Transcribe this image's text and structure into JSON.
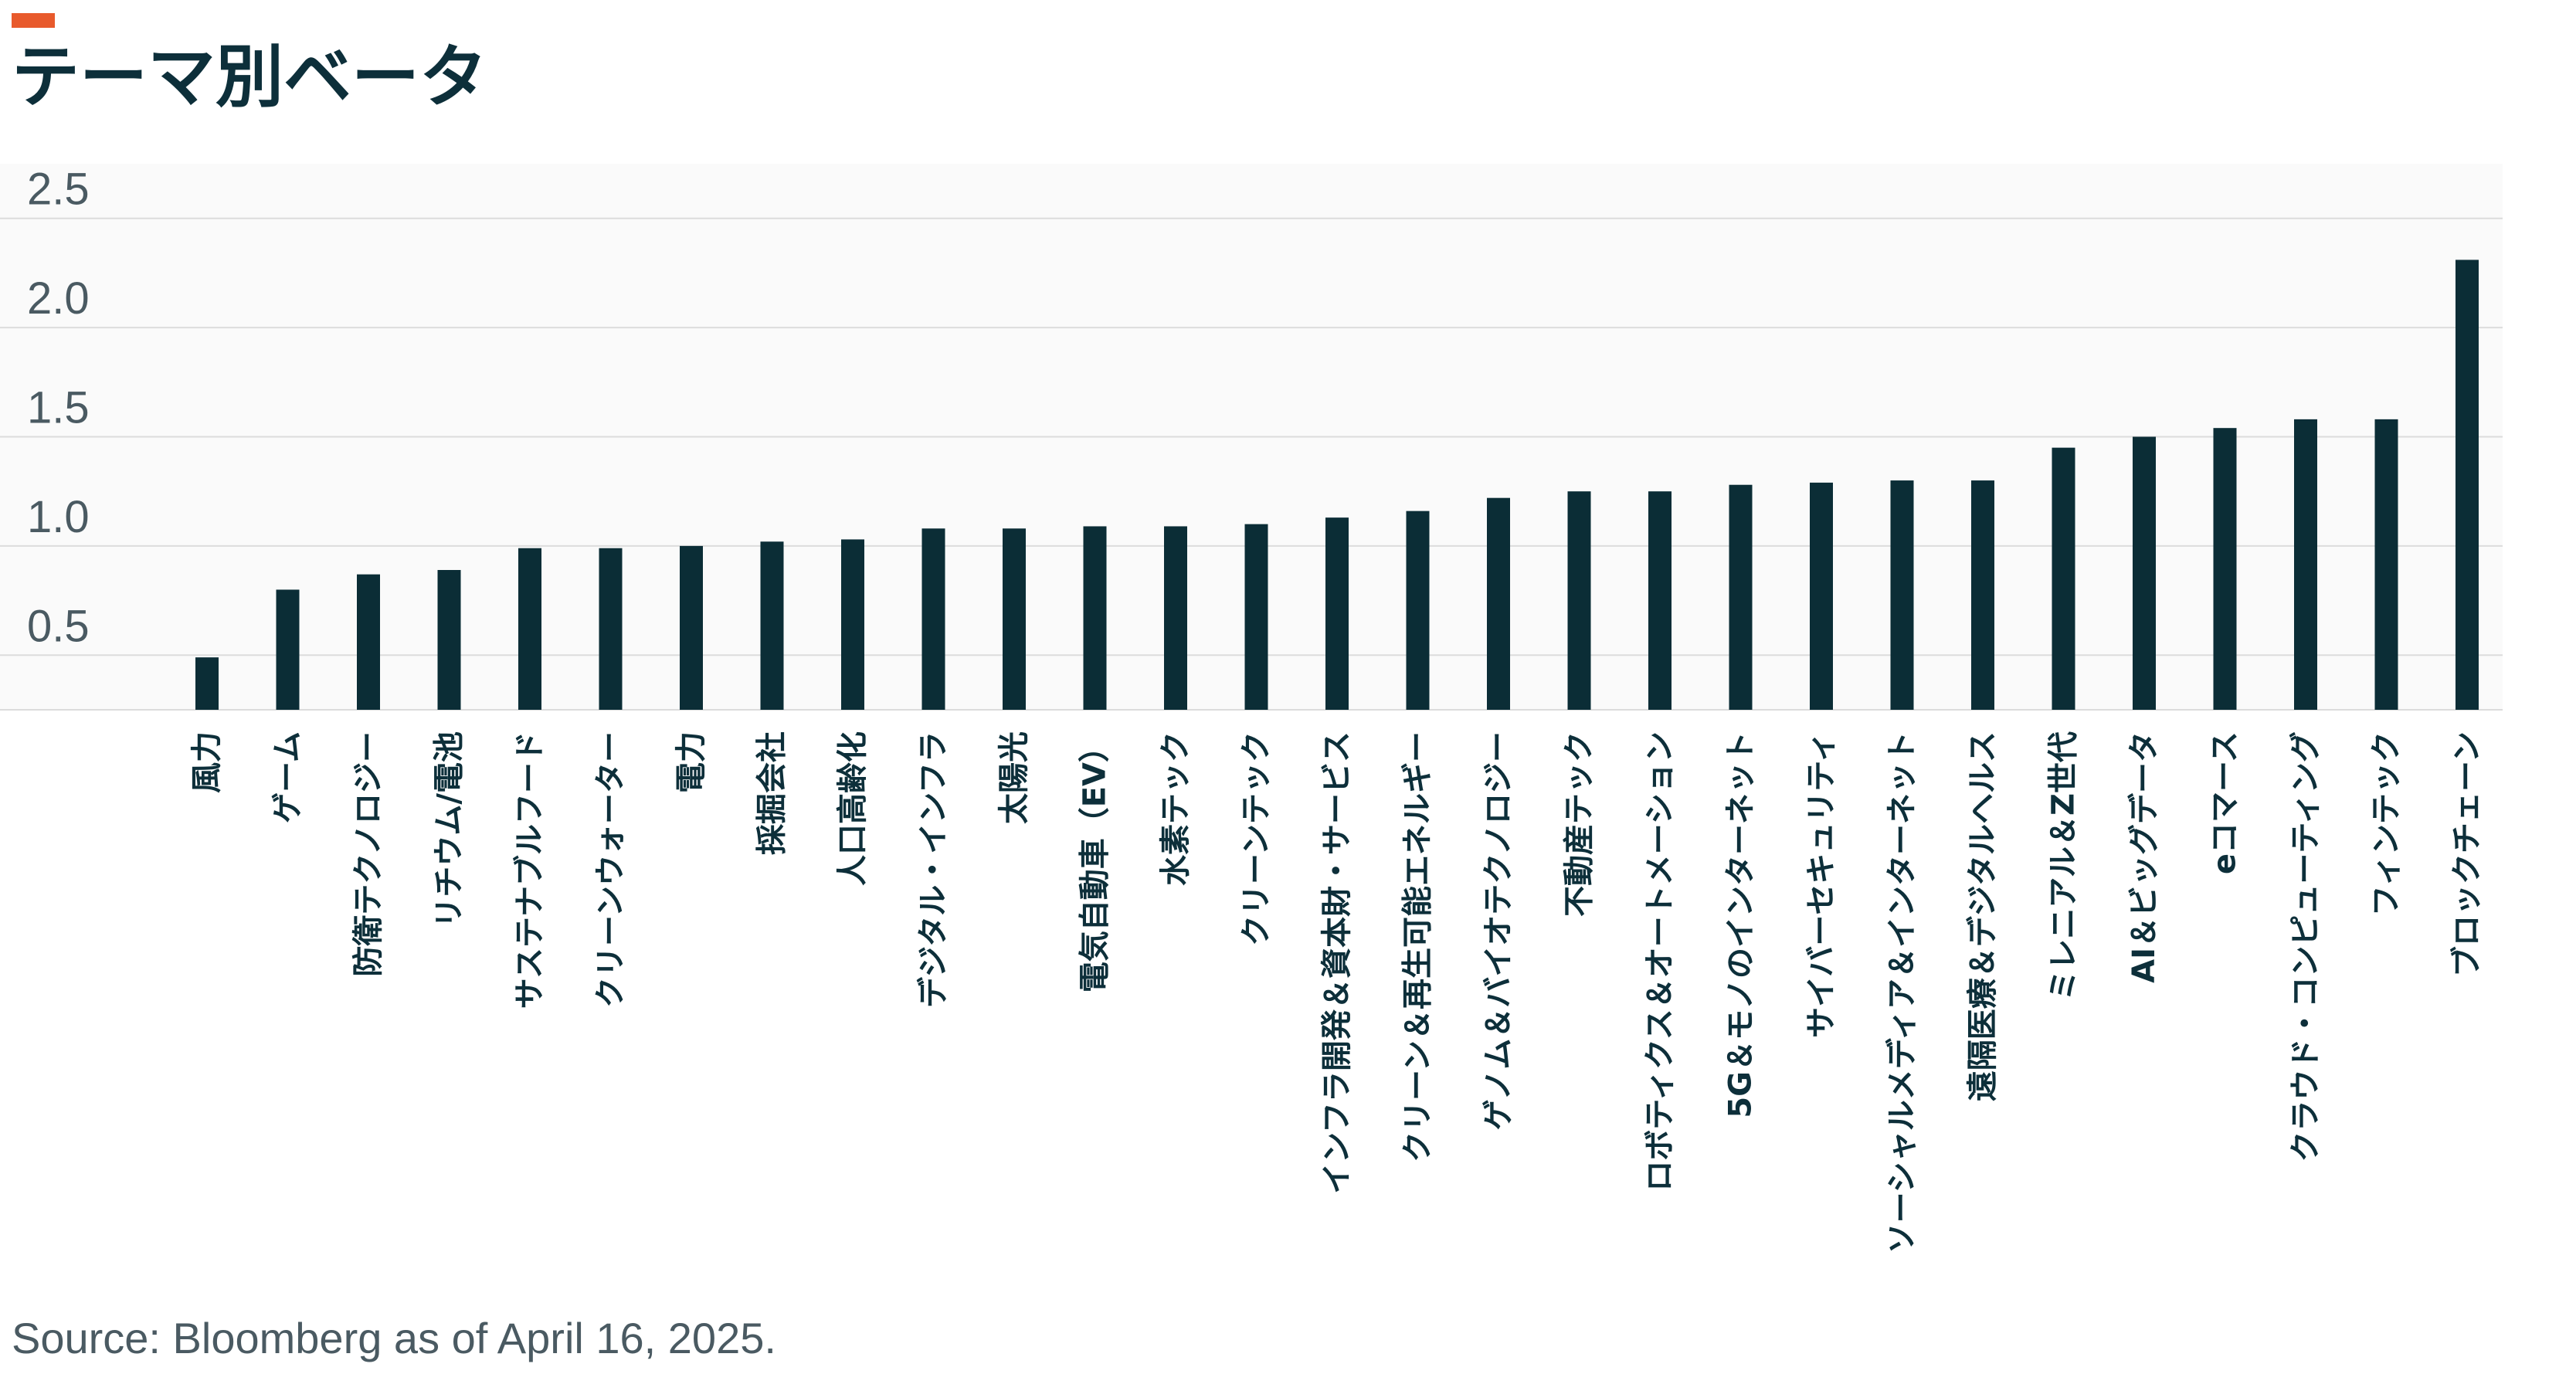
{
  "header": {
    "title": "テーマ別ベータ",
    "accent_color": "#e85a2c"
  },
  "source": "Source: Bloomberg as of April 16, 2025.",
  "colors": {
    "bar": "#0b2d36",
    "grid": "#dcdcdc",
    "plot_background": "#fafafa",
    "tick_text": "#4a5a62",
    "category_text": "#0d2f3a"
  },
  "chart_data": {
    "type": "bar",
    "title": "テーマ別ベータ",
    "xlabel": "",
    "ylabel": "",
    "ylim": [
      0.25,
      2.75
    ],
    "yticks": [
      0.5,
      1.0,
      1.5,
      2.0,
      2.5
    ],
    "ytick_labels": [
      "0.5",
      "1.0",
      "1.5",
      "2.0",
      "2.5"
    ],
    "grid": true,
    "categories": [
      "風力",
      "ゲーム",
      "防衛テクノロジー",
      "リチウム/電池",
      "サステナブルフード",
      "クリーンウォーター",
      "電力",
      "採掘会社",
      "人口高齢化",
      "デジタル・インフラ",
      "太陽光",
      "電気自動車（EV）",
      "水素テック",
      "クリーンテック",
      "インフラ開発＆資本財・サービス",
      "クリーン＆再生可能エネルギー",
      "ゲノム＆バイオテクノロジー",
      "不動産テック",
      "ロボティクス＆オートメーション",
      "5G＆モノのインターネット",
      "サイバーセキュリティ",
      "ソーシャルメディア＆インターネット",
      "遠隔医療＆デジタルヘルス",
      "ミレニアル＆Z世代",
      "AI＆ビッグデータ",
      "eコマース",
      "クラウド・コンピューティング",
      "フィンテック",
      "ブロックチェーン"
    ],
    "values": [
      0.49,
      0.8,
      0.87,
      0.89,
      0.99,
      0.99,
      1.0,
      1.02,
      1.03,
      1.08,
      1.08,
      1.09,
      1.09,
      1.1,
      1.13,
      1.16,
      1.22,
      1.25,
      1.25,
      1.28,
      1.29,
      1.3,
      1.3,
      1.45,
      1.5,
      1.54,
      1.58,
      1.58,
      2.31
    ]
  }
}
